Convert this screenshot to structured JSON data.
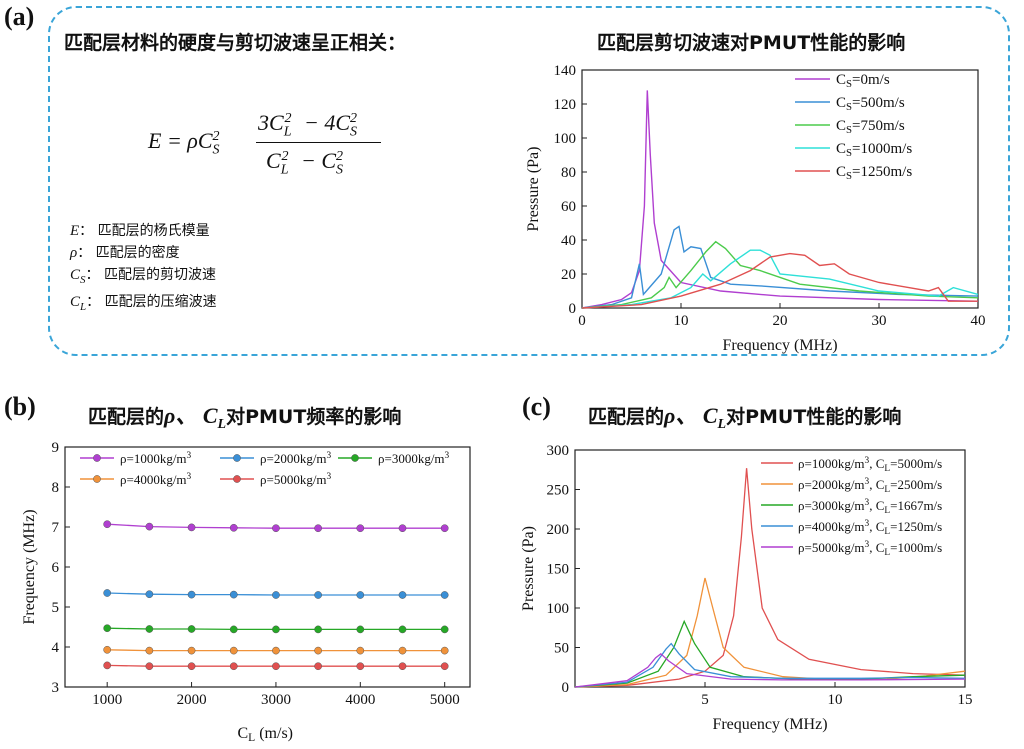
{
  "panel_a": {
    "letter": "(a)",
    "heading": "匹配层材料的硬度与剪切波速呈正相关：",
    "formula": {
      "lhs": "E = ρC",
      "sub_s": "S",
      "sup2": "2",
      "num_a": "3C",
      "sub_l": "L",
      "num_mid": " − 4C",
      "den_mid": " − C"
    },
    "definitions": [
      {
        "sym": "E",
        "sub": "",
        "text": "：  匹配层的杨氏模量"
      },
      {
        "sym": "ρ",
        "sub": "",
        "text": "：  匹配层的密度"
      },
      {
        "sym": "C",
        "sub": "S",
        "text": "：  匹配层的剪切波速"
      },
      {
        "sym": "C",
        "sub": "L",
        "text": "：  匹配层的压缩波速"
      }
    ],
    "chart_title": "匹配层剪切波速对PMUT性能的影响"
  },
  "panel_b": {
    "letter": "(b)",
    "title_pre": "匹配层的",
    "title_sym": "ρ、 C",
    "title_sub": "L",
    "title_post": "对PMUT频率的影响"
  },
  "panel_c": {
    "letter": "(c)",
    "title_pre": "匹配层的",
    "title_sym": "ρ、 C",
    "title_sub": "L",
    "title_post": "对PMUT性能的影响"
  },
  "chart_data": [
    {
      "type": "line",
      "xlabel": "Frequency (MHz)",
      "ylabel": "Pressure (Pa)",
      "xlim": [
        0,
        40
      ],
      "ylim": [
        0,
        140
      ],
      "xticks": [
        "0",
        "10",
        "20",
        "30",
        "40"
      ],
      "yticks": [
        "0",
        "20",
        "40",
        "60",
        "80",
        "100",
        "120",
        "140"
      ],
      "legend_position": "top-right",
      "series": [
        {
          "name": "C_S=0m/s",
          "legend_pre": "C",
          "legend_sub": "S",
          "legend_post": "=0m/s",
          "color": "#b03fd0",
          "x": [
            0,
            2,
            4,
            5,
            5.8,
            6.3,
            6.6,
            6.9,
            7.3,
            8,
            10,
            14,
            20,
            30,
            40
          ],
          "y": [
            0,
            2,
            5,
            9,
            22,
            60,
            128,
            90,
            50,
            28,
            15,
            10,
            7,
            5,
            4
          ]
        },
        {
          "name": "C_S=500m/s",
          "legend_pre": "C",
          "legend_sub": "S",
          "legend_post": "=500m/s",
          "color": "#3a8fd6",
          "x": [
            0,
            3,
            5,
            5.8,
            6.2,
            6.5,
            8,
            9.3,
            9.8,
            10.3,
            11,
            12,
            13,
            15,
            18,
            25,
            32,
            40
          ],
          "y": [
            0,
            2,
            6,
            26,
            8,
            10,
            20,
            46,
            48,
            33,
            36,
            35,
            18,
            14,
            13,
            10,
            8,
            7
          ]
        },
        {
          "name": "C_S=750m/s",
          "legend_pre": "C",
          "legend_sub": "S",
          "legend_post": "=750m/s",
          "color": "#4ccb4c",
          "x": [
            0,
            4,
            7,
            8.3,
            8.8,
            9.5,
            11,
            12.5,
            13.5,
            14.5,
            16,
            18,
            22,
            28,
            35,
            40
          ],
          "y": [
            0,
            2,
            6,
            12,
            18,
            12,
            22,
            33,
            39,
            35,
            25,
            22,
            14,
            10,
            7,
            6
          ]
        },
        {
          "name": "C_S=1000m/s",
          "legend_pre": "C",
          "legend_sub": "S",
          "legend_post": "=1000m/s",
          "color": "#2ee0d8",
          "x": [
            0,
            5,
            9,
            11,
            12.2,
            13,
            15,
            17,
            18,
            19,
            20,
            25,
            30,
            36,
            37.5,
            40
          ],
          "y": [
            0,
            2,
            6,
            12,
            20,
            16,
            26,
            34,
            34,
            31,
            20,
            17,
            10,
            7,
            12,
            8
          ]
        },
        {
          "name": "C_S=1250m/s",
          "legend_pre": "C",
          "legend_sub": "S",
          "legend_post": "=1250m/s",
          "color": "#e05050",
          "x": [
            0,
            6,
            10,
            14,
            17,
            19,
            21,
            22.5,
            24,
            25.5,
            27,
            30,
            33,
            35,
            36,
            37,
            40
          ],
          "y": [
            0,
            2,
            7,
            14,
            22,
            30,
            32,
            31,
            25,
            26,
            20,
            15,
            12,
            10,
            12,
            4,
            4
          ]
        }
      ]
    },
    {
      "type": "line",
      "xlabel_pre": "C",
      "xlabel_sub": "L",
      "xlabel_post": " (m/s)",
      "ylabel": "Frequency (MHz)",
      "xlim": [
        500,
        5300
      ],
      "ylim": [
        3,
        9
      ],
      "xticks": [
        "1000",
        "2000",
        "3000",
        "4000",
        "5000"
      ],
      "yticks": [
        "3",
        "4",
        "5",
        "6",
        "7",
        "8",
        "9"
      ],
      "legend_position": "top",
      "x": [
        1000,
        1500,
        2000,
        2500,
        3000,
        3500,
        4000,
        4500,
        5000
      ],
      "series": [
        {
          "name": "ρ=1000kg/m3",
          "legend_pre": "ρ=1000kg/m",
          "legend_sup": "3",
          "color": "#b03fd0",
          "values": [
            7.07,
            7.01,
            6.99,
            6.98,
            6.97,
            6.97,
            6.97,
            6.97,
            6.97
          ]
        },
        {
          "name": "ρ=2000kg/m3",
          "legend_pre": "ρ=2000kg/m",
          "legend_sup": "3",
          "color": "#3a8fd6",
          "values": [
            5.35,
            5.32,
            5.31,
            5.31,
            5.3,
            5.3,
            5.3,
            5.3,
            5.3
          ]
        },
        {
          "name": "ρ=3000kg/m3",
          "legend_pre": "ρ=3000kg/m",
          "legend_sup": "3",
          "color": "#26a826",
          "values": [
            4.47,
            4.45,
            4.45,
            4.44,
            4.44,
            4.44,
            4.44,
            4.44,
            4.44
          ]
        },
        {
          "name": "ρ=4000kg/m3",
          "legend_pre": "ρ=4000kg/m",
          "legend_sup": "3",
          "color": "#f0923a",
          "values": [
            3.93,
            3.91,
            3.91,
            3.91,
            3.91,
            3.91,
            3.91,
            3.91,
            3.91
          ]
        },
        {
          "name": "ρ=5000kg/m3",
          "legend_pre": "ρ=5000kg/m",
          "legend_sup": "3",
          "color": "#e05050",
          "values": [
            3.54,
            3.52,
            3.52,
            3.52,
            3.52,
            3.52,
            3.52,
            3.52,
            3.52
          ]
        }
      ]
    },
    {
      "type": "line",
      "xlabel": "Frequency (MHz)",
      "ylabel": "Pressure (Pa)",
      "xlim": [
        0,
        15
      ],
      "ylim": [
        0,
        300
      ],
      "xticks": [
        "5",
        "10",
        "15"
      ],
      "xtick_values": [
        5,
        10,
        15
      ],
      "yticks": [
        "0",
        "50",
        "100",
        "150",
        "200",
        "250",
        "300"
      ],
      "legend_position": "top-right",
      "series": [
        {
          "name": "ρ=1000kg/m3, C_L=5000m/s",
          "legend_pre": "ρ=1000kg/m",
          "legend_sup": "3",
          "legend_mid": ", C",
          "legend_sub": "L",
          "legend_post": "=5000m/s",
          "color": "#e05050",
          "x": [
            0,
            2,
            4,
            5,
            5.7,
            6.1,
            6.4,
            6.6,
            6.8,
            7.2,
            7.8,
            9,
            11,
            13,
            15
          ],
          "y": [
            0,
            2,
            10,
            20,
            40,
            90,
            190,
            277,
            200,
            100,
            60,
            35,
            22,
            17,
            15
          ]
        },
        {
          "name": "ρ=2000kg/m3, C_L=2500m/s",
          "legend_pre": "ρ=2000kg/m",
          "legend_sup": "3",
          "legend_mid": ", C",
          "legend_sub": "L",
          "legend_post": "=2500m/s",
          "color": "#f0923a",
          "x": [
            0,
            2,
            3.5,
            4.3,
            4.7,
            5,
            5.3,
            5.7,
            6.5,
            8,
            10,
            12,
            13.5,
            15
          ],
          "y": [
            0,
            3,
            15,
            40,
            90,
            138,
            100,
            50,
            25,
            13,
            9,
            10,
            14,
            20
          ]
        },
        {
          "name": "ρ=3000kg/m3, C_L=1667m/s",
          "legend_pre": "ρ=3000kg/m",
          "legend_sup": "3",
          "legend_mid": ", C",
          "legend_sub": "L",
          "legend_post": "=1667m/s",
          "color": "#26a826",
          "x": [
            0,
            2,
            3.2,
            3.8,
            4.2,
            4.6,
            5.2,
            6.5,
            8.5,
            11,
            13,
            15
          ],
          "y": [
            0,
            5,
            20,
            50,
            83,
            55,
            25,
            13,
            10,
            10,
            13,
            15
          ]
        },
        {
          "name": "ρ=4000kg/m3, C_L=1250m/s",
          "legend_pre": "ρ=4000kg/m",
          "legend_sup": "3",
          "legend_mid": ", C",
          "legend_sub": "L",
          "legend_post": "=1250m/s",
          "color": "#3a8fd6",
          "x": [
            0,
            2,
            3,
            3.5,
            3.7,
            4,
            4.6,
            6,
            8,
            11,
            13,
            15
          ],
          "y": [
            0,
            6,
            25,
            48,
            55,
            42,
            22,
            13,
            11,
            11,
            12,
            11
          ]
        },
        {
          "name": "ρ=5000kg/m3, C_L=1000m/s",
          "legend_pre": "ρ=5000kg/m",
          "legend_sup": "3",
          "legend_mid": ", C",
          "legend_sub": "L",
          "legend_post": "=1000m/s",
          "color": "#b03fd0",
          "x": [
            0,
            2,
            2.8,
            3.1,
            3.3,
            3.6,
            4.3,
            6,
            8,
            11,
            15
          ],
          "y": [
            0,
            8,
            25,
            37,
            42,
            33,
            17,
            10,
            9,
            9,
            10
          ]
        }
      ]
    }
  ]
}
